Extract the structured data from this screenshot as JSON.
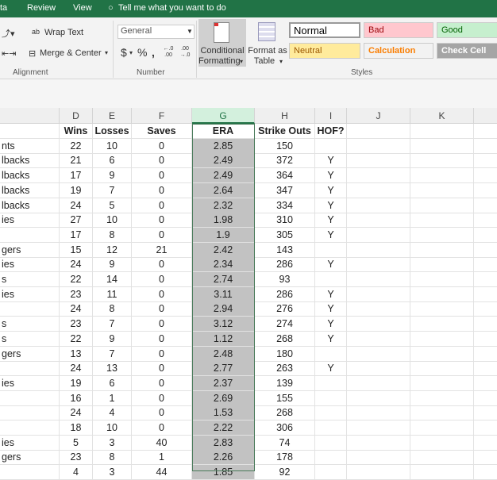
{
  "ribbon_tabs": [
    "ta",
    "Review",
    "View"
  ],
  "tell_me": "Tell me what you want to do",
  "alignment": {
    "wrap_text": "Wrap Text",
    "merge_center": "Merge & Center",
    "group_label": "Alignment"
  },
  "number": {
    "format": "General",
    "currency": "$",
    "percent": "%",
    "comma": ",",
    "inc_decimal": "←.0 .00",
    "dec_decimal": ".00 →.0",
    "group_label": "Number"
  },
  "conditional_formatting": {
    "line1": "Conditional",
    "line2": "Formatting"
  },
  "format_as_table": {
    "line1": "Format as",
    "line2": "Table"
  },
  "styles": {
    "group_label": "Styles",
    "items": [
      {
        "label": "Normal",
        "bg": "#ffffff",
        "fg": "#000000"
      },
      {
        "label": "Bad",
        "bg": "#ffc7ce",
        "fg": "#9c0006"
      },
      {
        "label": "Good",
        "bg": "#c6efce",
        "fg": "#006100"
      },
      {
        "label": "Neutral",
        "bg": "#ffeb9c",
        "fg": "#9c5700"
      },
      {
        "label": "Calculation",
        "bg": "#f2f2f2",
        "fg": "#fa7d00"
      },
      {
        "label": "Check Cell",
        "bg": "#a5a5a5",
        "fg": "#ffffff"
      }
    ]
  },
  "columns": [
    "D",
    "E",
    "F",
    "G",
    "H",
    "I",
    "J",
    "K"
  ],
  "selected_column": "G",
  "header_row": {
    "name": "",
    "wins": "Wins",
    "losses": "Losses",
    "saves": "Saves",
    "era": "ERA",
    "so": "Strike Outs",
    "hof": "HOF?"
  },
  "rows": [
    [
      "nts",
      "22",
      "10",
      "0",
      "2.85",
      "150",
      ""
    ],
    [
      "lbacks",
      "21",
      "6",
      "0",
      "2.49",
      "372",
      "Y"
    ],
    [
      "lbacks",
      "17",
      "9",
      "0",
      "2.49",
      "364",
      "Y"
    ],
    [
      "lbacks",
      "19",
      "7",
      "0",
      "2.64",
      "347",
      "Y"
    ],
    [
      "lbacks",
      "24",
      "5",
      "0",
      "2.32",
      "334",
      "Y"
    ],
    [
      "ies",
      "27",
      "10",
      "0",
      "1.98",
      "310",
      "Y"
    ],
    [
      "",
      "17",
      "8",
      "0",
      "1.9",
      "305",
      "Y"
    ],
    [
      "gers",
      "15",
      "12",
      "21",
      "2.42",
      "143",
      ""
    ],
    [
      "ies",
      "24",
      "9",
      "0",
      "2.34",
      "286",
      "Y"
    ],
    [
      "s",
      "22",
      "14",
      "0",
      "2.74",
      "93",
      ""
    ],
    [
      "ies",
      "23",
      "11",
      "0",
      "3.11",
      "286",
      "Y"
    ],
    [
      "",
      "24",
      "8",
      "0",
      "2.94",
      "276",
      "Y"
    ],
    [
      "s",
      "23",
      "7",
      "0",
      "3.12",
      "274",
      "Y"
    ],
    [
      "s",
      "22",
      "9",
      "0",
      "1.12",
      "268",
      "Y"
    ],
    [
      "gers",
      "13",
      "7",
      "0",
      "2.48",
      "180",
      ""
    ],
    [
      "",
      "24",
      "13",
      "0",
      "2.77",
      "263",
      "Y"
    ],
    [
      "ies",
      "19",
      "6",
      "0",
      "2.37",
      "139",
      ""
    ],
    [
      "",
      "16",
      "1",
      "0",
      "2.69",
      "155",
      ""
    ],
    [
      "",
      "24",
      "4",
      "0",
      "1.53",
      "268",
      ""
    ],
    [
      "",
      "18",
      "10",
      "0",
      "2.22",
      "306",
      ""
    ],
    [
      "ies",
      "5",
      "3",
      "40",
      "2.83",
      "74",
      ""
    ],
    [
      "gers",
      "23",
      "8",
      "1",
      "2.26",
      "178",
      ""
    ],
    [
      "",
      "4",
      "3",
      "44",
      "1.85",
      "92",
      ""
    ]
  ]
}
